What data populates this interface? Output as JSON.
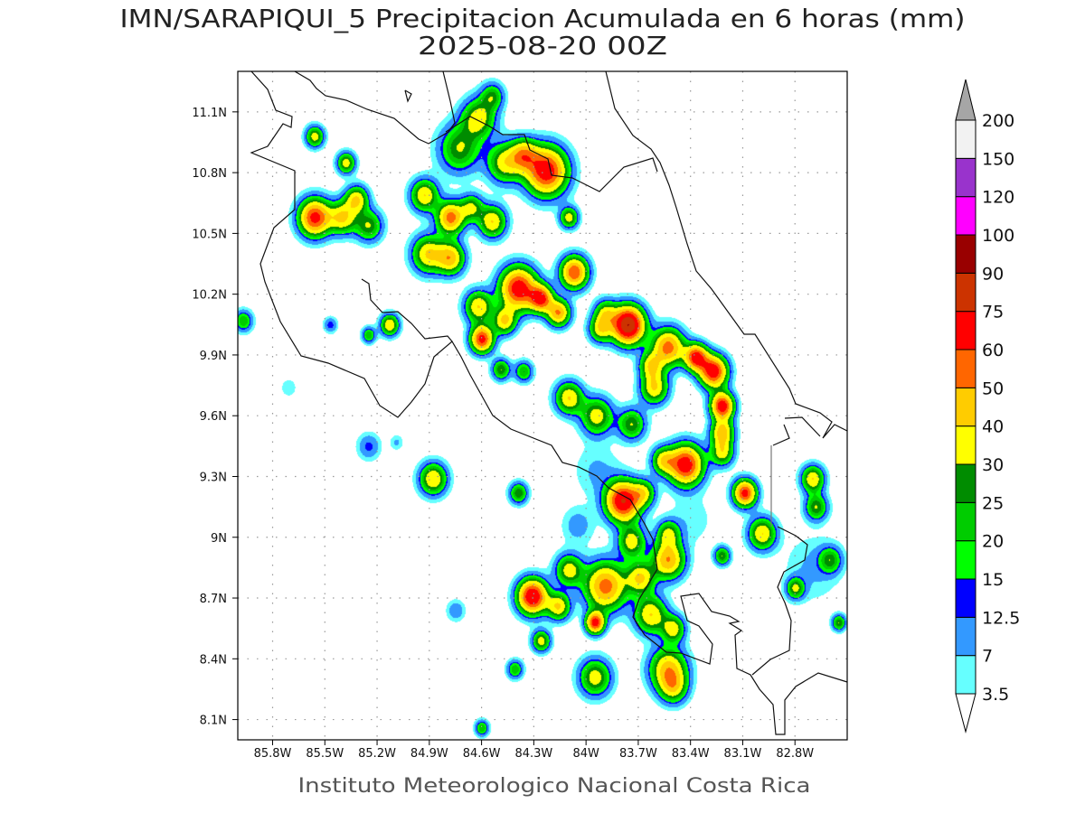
{
  "title": {
    "line1": "IMN/SARAPIQUI_5 Precipitacion Acumulada en 6 horas (mm)",
    "line2": "2025-08-20 00Z"
  },
  "footer": "Instituto Meteorologico Nacional Costa Rica",
  "chart_data": {
    "type": "heatmap",
    "variable": "Precipitacion Acumulada en 6 horas (mm)",
    "lon_range": [
      -86.0,
      -82.5
    ],
    "lat_range": [
      8.0,
      11.3
    ],
    "grid": true,
    "x_tick_labels": [
      "85.8W",
      "85.5W",
      "85.2W",
      "84.9W",
      "84.6W",
      "84.3W",
      "84W",
      "83.7W",
      "83.4W",
      "83.1W",
      "82.8W"
    ],
    "x_tick_values": [
      -85.8,
      -85.5,
      -85.2,
      -84.9,
      -84.6,
      -84.3,
      -84.0,
      -83.7,
      -83.4,
      -83.1,
      -82.8
    ],
    "y_tick_labels": [
      "11.1N",
      "10.8N",
      "10.5N",
      "10.2N",
      "9.9N",
      "9.6N",
      "9.3N",
      "9N",
      "8.7N",
      "8.4N",
      "8.1N"
    ],
    "y_tick_values": [
      11.1,
      10.8,
      10.5,
      10.2,
      9.9,
      9.6,
      9.3,
      9.0,
      8.7,
      8.4,
      8.1
    ],
    "colorbar": {
      "levels": [
        "3.5",
        "7",
        "12.5",
        "15",
        "20",
        "25",
        "30",
        "40",
        "50",
        "60",
        "75",
        "90",
        "100",
        "120",
        "150",
        "200"
      ],
      "level_values": [
        3.5,
        7,
        12.5,
        15,
        20,
        25,
        30,
        40,
        50,
        60,
        75,
        90,
        100,
        120,
        150,
        200
      ],
      "colors": [
        "#66ffff",
        "#3399ff",
        "#0000ff",
        "#00ff00",
        "#00cc00",
        "#008c00",
        "#ffff00",
        "#ffcc00",
        "#ff6600",
        "#ff0000",
        "#cc3300",
        "#990000",
        "#ff00ff",
        "#9933cc",
        "#f2f2f2"
      ],
      "over_color": "#a6a6a6",
      "under_color": "#ffffff",
      "placement": "right"
    },
    "cell_fields": [
      "lon",
      "lat",
      "peak_mm",
      "radius_deg"
    ],
    "cells": [
      [
        -84.62,
        11.07,
        35,
        0.075
      ],
      [
        -84.73,
        10.92,
        30,
        0.09
      ],
      [
        -84.54,
        11.18,
        25,
        0.05
      ],
      [
        -84.47,
        10.85,
        35,
        0.075
      ],
      [
        -84.23,
        10.81,
        70,
        0.09
      ],
      [
        -84.36,
        10.89,
        40,
        0.06
      ],
      [
        -85.56,
        10.58,
        65,
        0.07
      ],
      [
        -85.4,
        10.58,
        40,
        0.06
      ],
      [
        -85.32,
        10.67,
        40,
        0.05
      ],
      [
        -85.25,
        10.54,
        30,
        0.06
      ],
      [
        -85.56,
        10.98,
        35,
        0.04
      ],
      [
        -85.38,
        10.85,
        35,
        0.04
      ],
      [
        -84.93,
        10.69,
        40,
        0.06
      ],
      [
        -84.78,
        10.58,
        55,
        0.06
      ],
      [
        -84.54,
        10.56,
        40,
        0.06
      ],
      [
        -84.66,
        10.63,
        30,
        0.05
      ],
      [
        -84.91,
        10.4,
        40,
        0.07
      ],
      [
        -84.78,
        10.38,
        45,
        0.06
      ],
      [
        -84.1,
        10.58,
        35,
        0.04
      ],
      [
        -84.07,
        10.31,
        60,
        0.06
      ],
      [
        -84.39,
        10.23,
        70,
        0.08
      ],
      [
        -84.26,
        10.18,
        60,
        0.05
      ],
      [
        -84.16,
        10.11,
        50,
        0.05
      ],
      [
        -84.62,
        10.14,
        40,
        0.06
      ],
      [
        -84.6,
        9.98,
        65,
        0.05
      ],
      [
        -84.47,
        10.07,
        40,
        0.05
      ],
      [
        -84.49,
        9.83,
        30,
        0.04
      ],
      [
        -84.36,
        9.82,
        25,
        0.04
      ],
      [
        -83.76,
        10.05,
        90,
        0.07
      ],
      [
        -83.92,
        10.03,
        35,
        0.05
      ],
      [
        -83.89,
        10.11,
        30,
        0.05
      ],
      [
        -83.53,
        9.94,
        55,
        0.07
      ],
      [
        -83.37,
        9.89,
        65,
        0.05
      ],
      [
        -83.27,
        9.82,
        70,
        0.06
      ],
      [
        -83.61,
        9.74,
        40,
        0.06
      ],
      [
        -83.63,
        9.85,
        35,
        0.05
      ],
      [
        -84.1,
        9.69,
        40,
        0.06
      ],
      [
        -83.94,
        9.6,
        35,
        0.07
      ],
      [
        -83.74,
        9.56,
        30,
        0.06
      ],
      [
        -83.22,
        9.65,
        70,
        0.05
      ],
      [
        -83.22,
        9.52,
        45,
        0.05
      ],
      [
        -83.43,
        9.36,
        70,
        0.075
      ],
      [
        -83.22,
        9.42,
        35,
        0.05
      ],
      [
        -83.56,
        9.38,
        35,
        0.05
      ],
      [
        -83.79,
        9.18,
        75,
        0.075
      ],
      [
        -83.67,
        9.22,
        30,
        0.05
      ],
      [
        -83.09,
        9.22,
        65,
        0.05
      ],
      [
        -82.99,
        9.02,
        40,
        0.06
      ],
      [
        -82.7,
        9.29,
        40,
        0.05
      ],
      [
        -82.68,
        9.15,
        30,
        0.05
      ],
      [
        -83.53,
        8.89,
        50,
        0.07
      ],
      [
        -83.74,
        8.98,
        35,
        0.06
      ],
      [
        -83.53,
        9.02,
        30,
        0.05
      ],
      [
        -83.89,
        8.76,
        55,
        0.09
      ],
      [
        -83.69,
        8.8,
        40,
        0.06
      ],
      [
        -84.1,
        8.84,
        35,
        0.06
      ],
      [
        -84.31,
        8.71,
        75,
        0.065
      ],
      [
        -84.16,
        8.66,
        40,
        0.05
      ],
      [
        -83.95,
        8.58,
        65,
        0.04
      ],
      [
        -83.63,
        8.62,
        40,
        0.07
      ],
      [
        -83.5,
        8.55,
        35,
        0.05
      ],
      [
        -83.53,
        8.35,
        45,
        0.08
      ],
      [
        -83.5,
        8.26,
        30,
        0.06
      ],
      [
        -83.95,
        8.31,
        35,
        0.07
      ],
      [
        -84.26,
        8.49,
        35,
        0.04
      ],
      [
        -84.41,
        8.35,
        25,
        0.035
      ],
      [
        -84.88,
        9.29,
        40,
        0.06
      ],
      [
        -84.39,
        9.22,
        30,
        0.04
      ],
      [
        -84.6,
        8.06,
        25,
        0.03
      ],
      [
        -85.97,
        10.07,
        25,
        0.04
      ],
      [
        -85.13,
        10.05,
        40,
        0.04
      ],
      [
        -85.25,
        10.0,
        25,
        0.03
      ],
      [
        -85.25,
        9.45,
        14,
        0.05
      ],
      [
        -85.47,
        10.05,
        15,
        0.03
      ],
      [
        -85.71,
        9.74,
        6,
        0.04
      ],
      [
        -82.8,
        8.75,
        30,
        0.04
      ],
      [
        -82.6,
        8.89,
        25,
        0.05
      ],
      [
        -82.55,
        8.58,
        30,
        0.03
      ],
      [
        -83.22,
        8.91,
        30,
        0.035
      ],
      [
        -84.75,
        8.64,
        12,
        0.04
      ],
      [
        -84.05,
        9.06,
        10,
        0.07
      ],
      [
        -83.94,
        9.33,
        8,
        0.1
      ],
      [
        -83.4,
        9.09,
        6,
        0.1
      ],
      [
        -82.7,
        8.85,
        8,
        0.125
      ],
      [
        -85.09,
        9.47,
        8,
        0.03
      ]
    ]
  }
}
